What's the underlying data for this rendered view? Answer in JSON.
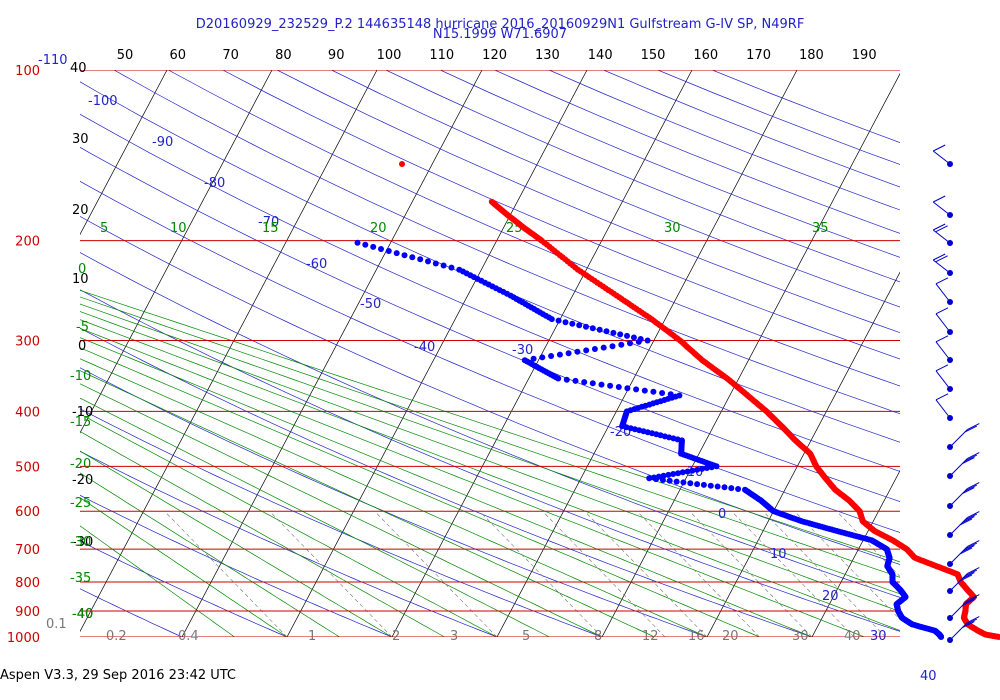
{
  "header": {
    "title_line1": "D20160929_232529_P.2 144635148 hurricane 2016_20160929N1 Gulfstream G-IV SP, N49RF",
    "title_line2": "N15.1999 W71.6907"
  },
  "footer": {
    "text": "Aspen V3.3, 29 Sep 2016  23:42 UTC"
  },
  "colors": {
    "isobar": "#cc0000",
    "isotherm": "#000000",
    "dry_adiabat": "#2222cc",
    "moist_adiabat": "#008800",
    "mixing_ratio": "#777777",
    "temperature": "#ff0000",
    "dewpoint": "#0000ff",
    "wind_barb": "#0000cc",
    "frame": "#000000"
  },
  "chart_data": {
    "type": "scatter",
    "title": "D20160929_232529_P.2 144635148 hurricane 2016_20160929N1 Gulfstream G-IV SP, N49RF",
    "subtitle": "N15.1999 W71.6907",
    "y_scale": "log-pressure",
    "ylim": [
      1000,
      100
    ],
    "pressure_ticks": [
      "100",
      "200",
      "300",
      "400",
      "500",
      "600",
      "700",
      "800",
      "900",
      "1000"
    ],
    "top_ticks": [
      "50",
      "60",
      "70",
      "80",
      "90",
      "100",
      "110",
      "120",
      "130",
      "140",
      "150",
      "160",
      "170",
      "180",
      "190"
    ],
    "isotherm_labels": [
      "40",
      "30",
      "20",
      "10",
      "0",
      "-10",
      "-20",
      "-30",
      "-40"
    ],
    "dry_adiabat_labels": [
      "-110",
      "-100",
      "-90",
      "-80",
      "-70",
      "-60",
      "-50",
      "-40",
      "-30",
      "-20",
      "-10",
      "0",
      "10",
      "20",
      "30",
      "40"
    ],
    "moist_adiabat_labels": [
      "5",
      "10",
      "15",
      "20",
      "25",
      "30",
      "35",
      "0",
      "-5",
      "-10",
      "-15",
      "-20",
      "-25",
      "-30",
      "-35",
      "-40"
    ],
    "mixing_ratio_labels": [
      "0.1",
      "0.2",
      "0.4",
      "1",
      "2",
      "3",
      "5",
      "8",
      "12",
      "16",
      "20",
      "30",
      "40"
    ],
    "grid": true,
    "series": [
      {
        "color": "#ff0000",
        "points": [
          [
            1000,
            27.8
          ],
          [
            990,
            26.4
          ],
          [
            975,
            25.5
          ],
          [
            950,
            24.2
          ],
          [
            925,
            23.5
          ],
          [
            900,
            23.3
          ],
          [
            875,
            23.0
          ],
          [
            850,
            23.4
          ],
          [
            825,
            22.4
          ],
          [
            800,
            21.4
          ],
          [
            775,
            20.7
          ],
          [
            750,
            18.3
          ],
          [
            725,
            15.8
          ],
          [
            700,
            14.6
          ],
          [
            675,
            12.8
          ],
          [
            650,
            10.6
          ],
          [
            625,
            9.0
          ],
          [
            600,
            8.2
          ],
          [
            575,
            6.7
          ],
          [
            550,
            4.8
          ],
          [
            525,
            3.3
          ],
          [
            500,
            1.8
          ],
          [
            475,
            0.6
          ],
          [
            450,
            -1.5
          ],
          [
            425,
            -3.5
          ],
          [
            400,
            -5.7
          ],
          [
            375,
            -8.3
          ],
          [
            350,
            -11.1
          ],
          [
            325,
            -14.4
          ],
          [
            300,
            -17.5
          ],
          [
            275,
            -21.3
          ],
          [
            250,
            -25.8
          ],
          [
            225,
            -30.8
          ],
          [
            200,
            -35.7
          ],
          [
            190,
            -38.0
          ],
          [
            180,
            -40.3
          ],
          [
            170,
            -42.6
          ]
        ]
      },
      {
        "color": "#0000ff",
        "points": [
          [
            1000,
            22.3
          ],
          [
            990,
            22.0
          ],
          [
            975,
            21.4
          ],
          [
            950,
            18.9
          ],
          [
            925,
            17.6
          ],
          [
            900,
            16.9
          ],
          [
            875,
            16.4
          ],
          [
            850,
            16.9
          ],
          [
            825,
            16.0
          ],
          [
            800,
            14.9
          ],
          [
            775,
            14.5
          ],
          [
            750,
            13.6
          ],
          [
            725,
            13.4
          ],
          [
            700,
            12.7
          ],
          [
            675,
            10.8
          ],
          [
            650,
            7.0
          ],
          [
            625,
            3.2
          ],
          [
            600,
            0.0
          ],
          [
            575,
            -1.7
          ],
          [
            550,
            -3.8
          ],
          [
            525,
            -13.5
          ],
          [
            500,
            -7.7
          ],
          [
            475,
            -11.7
          ],
          [
            450,
            -12.3
          ],
          [
            425,
            -18.7
          ],
          [
            400,
            -19.0
          ],
          [
            375,
            -14.8
          ],
          [
            350,
            -27.2
          ],
          [
            325,
            -31.3
          ],
          [
            300,
            -20.6
          ],
          [
            275,
            -30.8
          ],
          [
            250,
            -35.9
          ],
          [
            225,
            -42.1
          ],
          [
            200,
            -54.0
          ]
        ]
      }
    ],
    "wind_speeds_kt": [
      8,
      12,
      22,
      20,
      14,
      8,
      5,
      11,
      14,
      20,
      26,
      33,
      38,
      42,
      36,
      34,
      32,
      30
    ]
  }
}
